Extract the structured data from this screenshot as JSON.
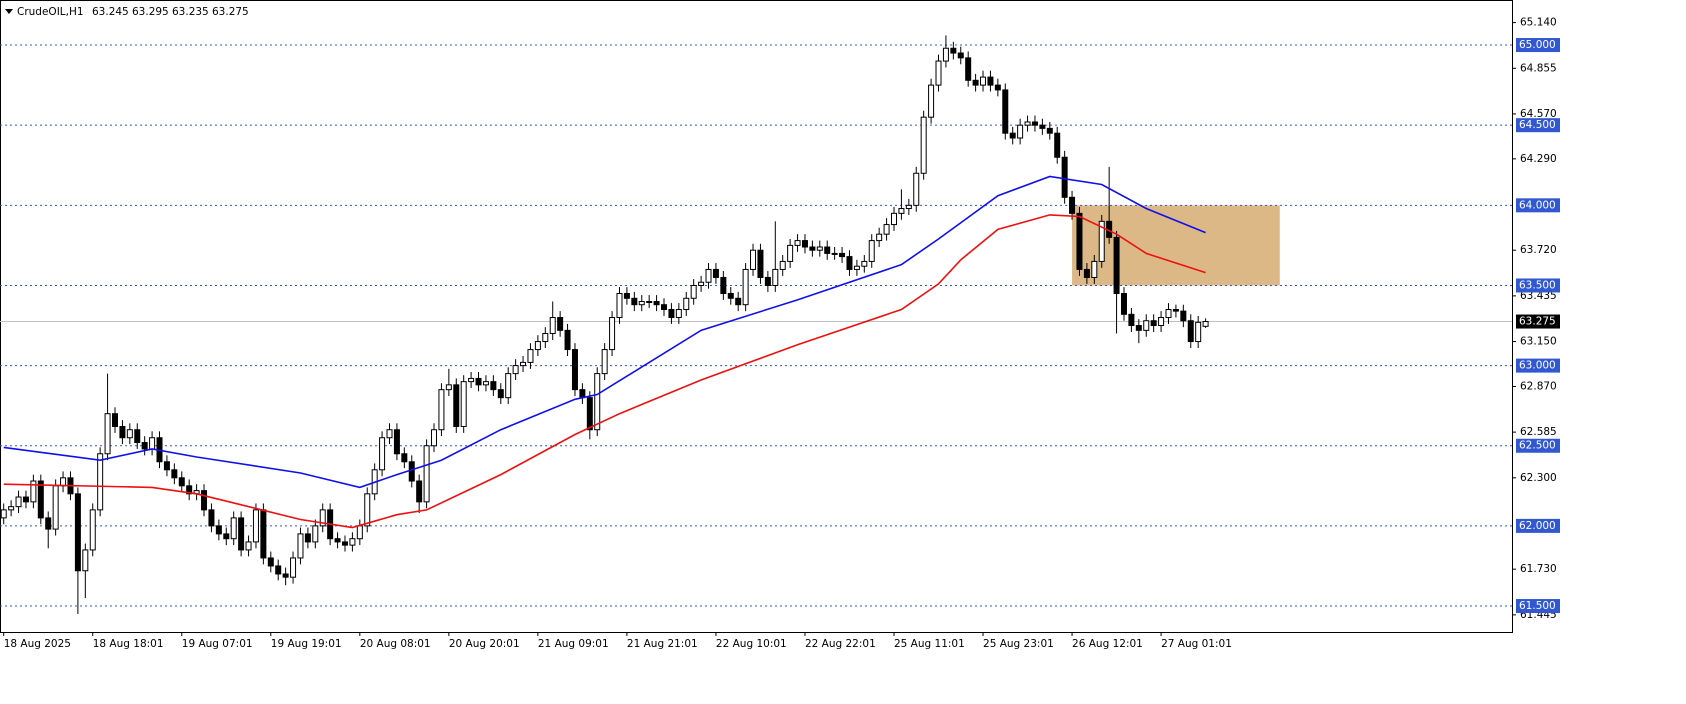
{
  "chart_data": {
    "type": "candlestick",
    "title": "CrudeOIL,H1",
    "quote": [
      63.245,
      63.295,
      63.235,
      63.275
    ],
    "xlim": [
      -0.5,
      203.3
    ],
    "ylim": [
      61.338,
      65.281
    ],
    "xticks": [
      {
        "value": 0,
        "label": "18 Aug 2025"
      },
      {
        "value": 12,
        "label": "18 Aug 18:01"
      },
      {
        "value": 24,
        "label": "19 Aug 07:01"
      },
      {
        "value": 36,
        "label": "19 Aug 19:01"
      },
      {
        "value": 48,
        "label": "20 Aug 08:01"
      },
      {
        "value": 60,
        "label": "20 Aug 20:01"
      },
      {
        "value": 72,
        "label": "21 Aug 09:01"
      },
      {
        "value": 84,
        "label": "21 Aug 21:01"
      },
      {
        "value": 96,
        "label": "22 Aug 10:01"
      },
      {
        "value": 108,
        "label": "22 Aug 22:01"
      },
      {
        "value": 120,
        "label": "25 Aug 11:01"
      },
      {
        "value": 132,
        "label": "25 Aug 23:01"
      },
      {
        "value": 144,
        "label": "26 Aug 12:01"
      },
      {
        "value": 156,
        "label": "27 Aug 01:01"
      }
    ],
    "yticks": [
      {
        "value": 65.14,
        "label": "65.140"
      },
      {
        "value": 64.855,
        "label": "64.855"
      },
      {
        "value": 64.57,
        "label": "64.570"
      },
      {
        "value": 64.29,
        "label": "64.290"
      },
      {
        "value": 63.72,
        "label": "63.720"
      },
      {
        "value": 63.435,
        "label": "63.435"
      },
      {
        "value": 63.15,
        "label": "63.150"
      },
      {
        "value": 62.87,
        "label": "62.870"
      },
      {
        "value": 62.585,
        "label": "62.585"
      },
      {
        "value": 62.3,
        "label": "62.300"
      },
      {
        "value": 61.73,
        "label": "61.730"
      },
      {
        "value": 61.445,
        "label": "61.445"
      }
    ],
    "levels": [
      {
        "value": 65,
        "label": "65.000"
      },
      {
        "value": 64.5,
        "label": "64.500"
      },
      {
        "value": 64,
        "label": "64.000"
      },
      {
        "value": 63.5,
        "label": "63.500"
      },
      {
        "value": 63,
        "label": "63.000"
      },
      {
        "value": 62.5,
        "label": "62.500"
      },
      {
        "value": 62,
        "label": "62.000"
      },
      {
        "value": 61.5,
        "label": "61.500"
      }
    ],
    "level_color": "#3158d0",
    "current_price": 63.275,
    "zone": {
      "x": [
        144,
        172
      ],
      "y": [
        63.5,
        64.0
      ],
      "color": "#dcb886"
    },
    "open": [
      62.05,
      62.1,
      62.12,
      62.18,
      62.15,
      62.28,
      62.05,
      61.98,
      62.25,
      62.3,
      62.2,
      61.72,
      61.85,
      62.1,
      62.45,
      62.7,
      62.62,
      62.55,
      62.6,
      62.52,
      62.48,
      62.55,
      62.4,
      62.35,
      62.3,
      62.25,
      62.2,
      62.22,
      62.1,
      62.0,
      61.95,
      61.92,
      62.05,
      61.85,
      61.9,
      62.1,
      61.8,
      61.75,
      61.7,
      61.68,
      61.8,
      61.95,
      61.9,
      62.0,
      62.1,
      61.92,
      61.9,
      61.88,
      61.92,
      62.0,
      62.2,
      62.35,
      62.55,
      62.6,
      62.45,
      62.4,
      62.28,
      62.15,
      62.5,
      62.6,
      62.85,
      62.88,
      62.62,
      62.9,
      62.92,
      62.88,
      62.9,
      62.85,
      62.8,
      62.95,
      63.0,
      63.02,
      63.1,
      63.15,
      63.2,
      63.3,
      63.22,
      63.1,
      62.85,
      62.8,
      62.6,
      62.95,
      63.1,
      63.3,
      63.45,
      63.42,
      63.38,
      63.4,
      63.4,
      63.38,
      63.35,
      63.3,
      63.35,
      63.42,
      63.5,
      63.52,
      63.6,
      63.55,
      63.45,
      63.42,
      63.38,
      63.6,
      63.72,
      63.55,
      63.5,
      63.6,
      63.65,
      63.75,
      63.78,
      63.74,
      63.72,
      63.74,
      63.7,
      63.7,
      63.68,
      63.6,
      63.62,
      63.65,
      63.78,
      63.82,
      63.88,
      63.95,
      63.98,
      64.0,
      64.2,
      64.55,
      64.75,
      64.9,
      64.98,
      64.95,
      64.92,
      64.78,
      64.75,
      64.8,
      64.75,
      64.72,
      64.45,
      64.42,
      64.5,
      64.52,
      64.5,
      64.48,
      64.45,
      64.3,
      64.05,
      63.95,
      63.6,
      63.55,
      63.65,
      63.9,
      63.8,
      63.45,
      63.32,
      63.25,
      63.22,
      63.28,
      63.25,
      63.3,
      63.35,
      63.34,
      63.28,
      63.15,
      63.245
    ],
    "high": [
      62.14,
      62.16,
      62.22,
      62.22,
      62.32,
      62.32,
      62.09,
      62.29,
      62.34,
      62.34,
      62.24,
      61.89,
      62.14,
      62.49,
      62.95,
      62.74,
      62.66,
      62.64,
      62.64,
      62.56,
      62.59,
      62.59,
      62.44,
      62.39,
      62.34,
      62.29,
      62.26,
      62.26,
      62.14,
      62.04,
      61.99,
      62.09,
      62.09,
      61.94,
      62.14,
      62.14,
      61.84,
      61.79,
      61.74,
      61.84,
      61.99,
      61.99,
      62.04,
      62.14,
      62.14,
      61.96,
      61.94,
      61.96,
      62.04,
      62.24,
      62.39,
      62.59,
      62.64,
      62.64,
      62.49,
      62.44,
      62.32,
      62.54,
      62.64,
      62.89,
      62.98,
      62.92,
      62.94,
      62.96,
      62.96,
      62.94,
      62.94,
      62.89,
      62.99,
      63.04,
      63.06,
      63.14,
      63.19,
      63.24,
      63.4,
      63.34,
      63.26,
      63.14,
      62.89,
      62.84,
      62.99,
      63.14,
      63.34,
      63.49,
      63.49,
      63.46,
      63.44,
      63.44,
      63.44,
      63.42,
      63.39,
      63.39,
      63.46,
      63.54,
      63.56,
      63.64,
      63.64,
      63.59,
      63.49,
      63.46,
      63.64,
      63.76,
      63.76,
      63.59,
      63.9,
      63.69,
      63.79,
      63.82,
      63.82,
      63.78,
      63.78,
      63.78,
      63.74,
      63.74,
      63.72,
      63.66,
      63.69,
      63.82,
      63.86,
      63.92,
      63.99,
      64.1,
      64.04,
      64.24,
      64.59,
      64.79,
      64.94,
      65.06,
      65.02,
      64.99,
      64.96,
      64.82,
      64.84,
      64.84,
      64.79,
      64.76,
      64.49,
      64.54,
      64.56,
      64.56,
      64.54,
      64.52,
      64.49,
      64.34,
      64.09,
      63.99,
      63.64,
      63.69,
      63.94,
      64.24,
      63.84,
      63.49,
      63.36,
      63.29,
      63.32,
      63.32,
      63.34,
      63.39,
      63.38,
      63.38,
      63.32,
      63.31,
      63.295
    ],
    "low": [
      62.01,
      62.06,
      62.08,
      62.11,
      62.11,
      62.01,
      61.86,
      61.94,
      62.21,
      62.16,
      61.45,
      61.55,
      61.81,
      62.06,
      62.41,
      62.58,
      62.51,
      62.51,
      62.48,
      62.44,
      62.44,
      62.36,
      62.31,
      62.26,
      62.21,
      62.16,
      62.16,
      62.06,
      61.96,
      61.91,
      61.88,
      61.88,
      61.81,
      61.81,
      61.86,
      61.76,
      61.71,
      61.66,
      61.63,
      61.64,
      61.76,
      61.86,
      61.86,
      61.96,
      61.88,
      61.86,
      61.84,
      61.84,
      61.88,
      61.96,
      62.16,
      62.31,
      62.51,
      62.41,
      62.36,
      62.24,
      62.08,
      62.11,
      62.46,
      62.56,
      62.81,
      62.58,
      62.58,
      62.86,
      62.84,
      62.84,
      62.81,
      62.76,
      62.76,
      62.91,
      62.96,
      62.98,
      63.06,
      63.11,
      63.16,
      63.18,
      63.06,
      62.81,
      62.76,
      62.54,
      62.56,
      62.91,
      63.06,
      63.26,
      63.38,
      63.34,
      63.34,
      63.36,
      63.34,
      63.31,
      63.26,
      63.26,
      63.31,
      63.38,
      63.46,
      63.48,
      63.51,
      63.41,
      63.38,
      63.34,
      63.34,
      63.56,
      63.51,
      63.46,
      63.46,
      63.56,
      63.61,
      63.71,
      63.7,
      63.68,
      63.68,
      63.66,
      63.66,
      63.64,
      63.56,
      63.56,
      63.58,
      63.61,
      63.74,
      63.78,
      63.84,
      63.91,
      63.94,
      63.96,
      64.16,
      64.51,
      64.71,
      64.86,
      64.91,
      64.88,
      64.74,
      64.71,
      64.71,
      64.71,
      64.68,
      64.41,
      64.38,
      64.38,
      64.46,
      64.46,
      64.44,
      64.41,
      64.26,
      64.01,
      63.91,
      63.56,
      63.51,
      63.51,
      63.61,
      63.76,
      63.2,
      63.28,
      63.21,
      63.14,
      63.18,
      63.21,
      63.21,
      63.26,
      63.3,
      63.24,
      63.11,
      63.11,
      63.235
    ],
    "close": [
      62.1,
      62.12,
      62.18,
      62.15,
      62.28,
      62.05,
      61.98,
      62.25,
      62.3,
      62.2,
      61.72,
      61.85,
      62.1,
      62.45,
      62.7,
      62.62,
      62.55,
      62.6,
      62.52,
      62.48,
      62.55,
      62.4,
      62.35,
      62.3,
      62.25,
      62.2,
      62.22,
      62.1,
      62.0,
      61.95,
      61.92,
      62.05,
      61.85,
      61.9,
      62.1,
      61.8,
      61.75,
      61.7,
      61.68,
      61.8,
      61.95,
      61.9,
      62.0,
      62.1,
      61.92,
      61.9,
      61.88,
      61.92,
      62.0,
      62.2,
      62.35,
      62.55,
      62.6,
      62.45,
      62.4,
      62.28,
      62.15,
      62.5,
      62.6,
      62.85,
      62.88,
      62.62,
      62.9,
      62.92,
      62.88,
      62.9,
      62.85,
      62.8,
      62.95,
      63.0,
      63.02,
      63.1,
      63.15,
      63.2,
      63.3,
      63.22,
      63.1,
      62.85,
      62.8,
      62.6,
      62.95,
      63.1,
      63.3,
      63.45,
      63.42,
      63.38,
      63.4,
      63.4,
      63.38,
      63.35,
      63.3,
      63.35,
      63.42,
      63.5,
      63.52,
      63.6,
      63.55,
      63.45,
      63.42,
      63.38,
      63.6,
      63.72,
      63.55,
      63.5,
      63.6,
      63.65,
      63.75,
      63.78,
      63.74,
      63.72,
      63.74,
      63.7,
      63.7,
      63.68,
      63.6,
      63.62,
      63.65,
      63.78,
      63.82,
      63.88,
      63.95,
      63.98,
      64.0,
      64.2,
      64.55,
      64.75,
      64.9,
      64.98,
      64.95,
      64.92,
      64.78,
      64.75,
      64.8,
      64.75,
      64.72,
      64.45,
      64.42,
      64.5,
      64.52,
      64.5,
      64.48,
      64.45,
      64.3,
      64.05,
      63.95,
      63.6,
      63.55,
      63.65,
      63.9,
      63.8,
      63.45,
      63.32,
      63.25,
      63.22,
      63.28,
      63.25,
      63.3,
      63.35,
      63.34,
      63.28,
      63.15,
      63.27,
      63.275
    ],
    "series": [
      {
        "color": "#1010ee",
        "x": [
          0,
          13,
          20,
          26,
          40,
          48,
          53,
          59,
          67,
          77,
          80,
          94,
          107,
          121,
          126,
          134,
          141,
          148,
          154,
          162
        ],
        "values": [
          62.49,
          62.41,
          62.48,
          62.43,
          62.33,
          62.24,
          62.32,
          62.41,
          62.6,
          62.79,
          62.82,
          63.22,
          63.41,
          63.63,
          63.79,
          64.06,
          64.18,
          64.13,
          63.98,
          63.83
        ]
      },
      {
        "color": "#ee1010",
        "x": [
          0,
          20,
          26,
          40,
          47,
          53,
          57,
          67,
          77,
          83,
          94,
          107,
          121,
          126,
          129,
          134,
          141,
          145,
          150,
          154,
          162
        ],
        "values": [
          62.26,
          62.24,
          62.2,
          62.04,
          61.99,
          62.07,
          62.1,
          62.32,
          62.57,
          62.7,
          62.91,
          63.13,
          63.35,
          63.51,
          63.66,
          63.85,
          63.94,
          63.93,
          63.82,
          63.7,
          63.58
        ]
      }
    ]
  }
}
